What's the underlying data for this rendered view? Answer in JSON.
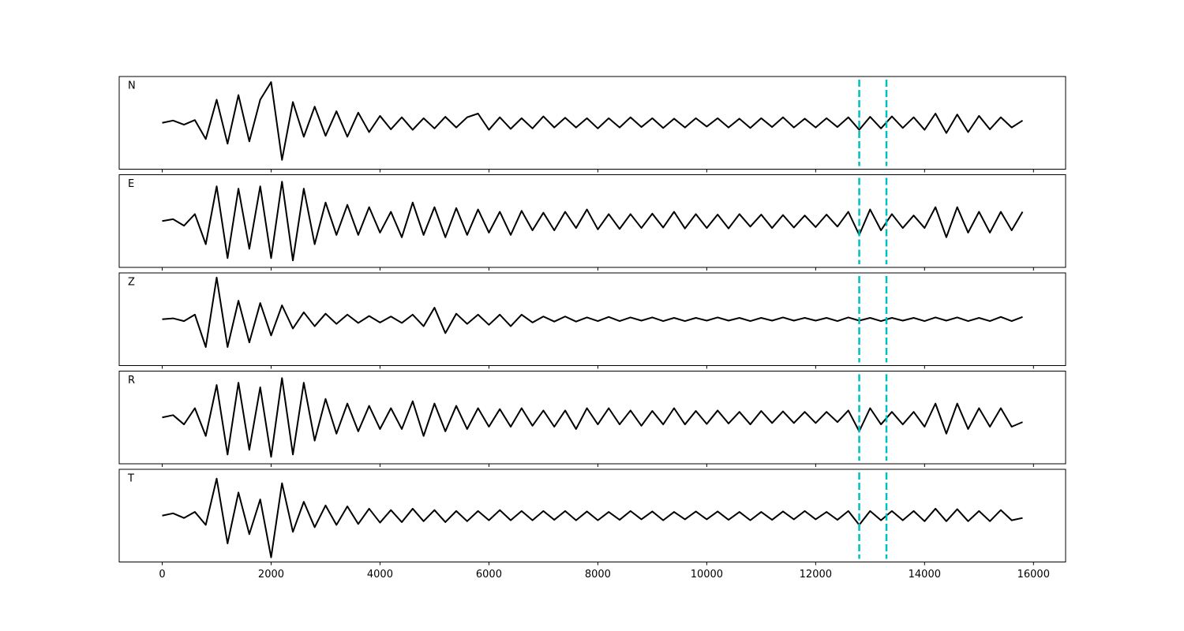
{
  "chart_data": {
    "type": "line",
    "layout": "stacked",
    "x": [
      0,
      200,
      400,
      600,
      800,
      1000,
      1200,
      1400,
      1600,
      1800,
      2000,
      2200,
      2400,
      2600,
      2800,
      3000,
      3200,
      3400,
      3600,
      3800,
      4000,
      4200,
      4400,
      4600,
      4800,
      5000,
      5200,
      5400,
      5600,
      5800,
      6000,
      6200,
      6400,
      6600,
      6800,
      7000,
      7200,
      7400,
      7600,
      7800,
      8000,
      8200,
      8400,
      8600,
      8800,
      9000,
      9200,
      9400,
      9600,
      9800,
      10000,
      10200,
      10400,
      10600,
      10800,
      11000,
      11200,
      11400,
      11600,
      11800,
      12000,
      12200,
      12400,
      12600,
      12800,
      13000,
      13200,
      13400,
      13600,
      13800,
      14000,
      14200,
      14400,
      14600,
      14800,
      15000,
      15200,
      15400,
      15600,
      15800
    ],
    "series": [
      {
        "name": "N",
        "color": "#000000",
        "values": [
          0,
          0.05,
          -0.04,
          0.06,
          -0.35,
          0.5,
          -0.45,
          0.6,
          -0.4,
          0.5,
          0.88,
          -0.8,
          0.45,
          -0.3,
          0.35,
          -0.28,
          0.25,
          -0.3,
          0.22,
          -0.2,
          0.15,
          -0.14,
          0.12,
          -0.15,
          0.1,
          -0.12,
          0.13,
          -0.1,
          0.12,
          0.2,
          -0.15,
          0.12,
          -0.13,
          0.1,
          -0.12,
          0.14,
          -0.1,
          0.11,
          -0.1,
          0.1,
          -0.12,
          0.1,
          -0.1,
          0.12,
          -0.09,
          0.1,
          -0.11,
          0.09,
          -0.1,
          0.1,
          -0.08,
          0.1,
          -0.1,
          0.09,
          -0.11,
          0.1,
          -0.09,
          0.12,
          -0.1,
          0.09,
          -0.1,
          0.1,
          -0.09,
          0.12,
          -0.15,
          0.13,
          -0.12,
          0.14,
          -0.11,
          0.12,
          -0.15,
          0.2,
          -0.22,
          0.18,
          -0.2,
          0.15,
          -0.14,
          0.12,
          -0.1,
          0.05
        ]
      },
      {
        "name": "E",
        "color": "#000000",
        "values": [
          0,
          0.04,
          -0.1,
          0.15,
          -0.5,
          0.75,
          -0.8,
          0.7,
          -0.6,
          0.75,
          -0.8,
          0.85,
          -0.85,
          0.7,
          -0.5,
          0.4,
          -0.3,
          0.35,
          -0.3,
          0.3,
          -0.25,
          0.2,
          -0.35,
          0.4,
          -0.3,
          0.3,
          -0.35,
          0.28,
          -0.3,
          0.25,
          -0.25,
          0.2,
          -0.3,
          0.22,
          -0.2,
          0.18,
          -0.2,
          0.2,
          -0.15,
          0.25,
          -0.18,
          0.15,
          -0.17,
          0.15,
          -0.15,
          0.16,
          -0.14,
          0.2,
          -0.16,
          0.15,
          -0.15,
          0.14,
          -0.16,
          0.15,
          -0.12,
          0.14,
          -0.15,
          0.13,
          -0.14,
          0.12,
          -0.13,
          0.14,
          -0.12,
          0.2,
          -0.3,
          0.25,
          -0.2,
          0.15,
          -0.15,
          0.12,
          -0.15,
          0.3,
          -0.35,
          0.3,
          -0.25,
          0.2,
          -0.25,
          0.2,
          -0.2,
          0.2
        ]
      },
      {
        "name": "Z",
        "color": "#000000",
        "values": [
          0,
          0.02,
          -0.04,
          0.1,
          -0.6,
          0.9,
          -0.6,
          0.4,
          -0.5,
          0.35,
          -0.35,
          0.3,
          -0.2,
          0.15,
          -0.15,
          0.12,
          -0.1,
          0.1,
          -0.08,
          0.07,
          -0.07,
          0.06,
          -0.08,
          0.1,
          -0.15,
          0.25,
          -0.3,
          0.12,
          -0.1,
          0.1,
          -0.12,
          0.1,
          -0.15,
          0.1,
          -0.07,
          0.06,
          -0.05,
          0.06,
          -0.05,
          0.04,
          -0.04,
          0.05,
          -0.04,
          0.04,
          -0.03,
          0.04,
          -0.04,
          0.03,
          -0.04,
          0.03,
          -0.03,
          0.04,
          -0.03,
          0.03,
          -0.04,
          0.03,
          -0.03,
          0.04,
          -0.03,
          0.03,
          -0.03,
          0.03,
          -0.04,
          0.04,
          -0.03,
          0.03,
          -0.04,
          0.03,
          -0.03,
          0.03,
          -0.04,
          0.04,
          -0.03,
          0.04,
          -0.04,
          0.03,
          -0.04,
          0.05,
          -0.04,
          0.05
        ]
      },
      {
        "name": "R",
        "color": "#000000",
        "values": [
          0,
          0.05,
          -0.15,
          0.2,
          -0.4,
          0.7,
          -0.8,
          0.75,
          -0.7,
          0.65,
          -0.85,
          0.85,
          -0.8,
          0.75,
          -0.5,
          0.4,
          -0.35,
          0.3,
          -0.3,
          0.25,
          -0.25,
          0.2,
          -0.25,
          0.35,
          -0.4,
          0.3,
          -0.3,
          0.25,
          -0.25,
          0.2,
          -0.2,
          0.18,
          -0.2,
          0.2,
          -0.18,
          0.15,
          -0.2,
          0.15,
          -0.25,
          0.2,
          -0.15,
          0.2,
          -0.15,
          0.15,
          -0.18,
          0.14,
          -0.15,
          0.2,
          -0.15,
          0.14,
          -0.14,
          0.15,
          -0.13,
          0.12,
          -0.15,
          0.14,
          -0.12,
          0.13,
          -0.12,
          0.12,
          -0.12,
          0.12,
          -0.1,
          0.15,
          -0.3,
          0.2,
          -0.15,
          0.12,
          -0.15,
          0.12,
          -0.2,
          0.3,
          -0.35,
          0.3,
          -0.25,
          0.2,
          -0.2,
          0.2,
          -0.2,
          -0.1
        ]
      },
      {
        "name": "T",
        "color": "#000000",
        "values": [
          0,
          0.05,
          -0.05,
          0.08,
          -0.2,
          0.8,
          -0.6,
          0.5,
          -0.4,
          0.35,
          -0.9,
          0.7,
          -0.35,
          0.3,
          -0.25,
          0.22,
          -0.2,
          0.2,
          -0.18,
          0.15,
          -0.15,
          0.12,
          -0.14,
          0.15,
          -0.12,
          0.12,
          -0.14,
          0.1,
          -0.12,
          0.1,
          -0.1,
          0.12,
          -0.1,
          0.1,
          -0.1,
          0.1,
          -0.09,
          0.1,
          -0.1,
          0.09,
          -0.1,
          0.08,
          -0.09,
          0.1,
          -0.08,
          0.09,
          -0.1,
          0.08,
          -0.08,
          0.09,
          -0.08,
          0.09,
          -0.09,
          0.08,
          -0.1,
          0.08,
          -0.09,
          0.09,
          -0.08,
          0.1,
          -0.08,
          0.08,
          -0.09,
          0.1,
          -0.2,
          0.1,
          -0.1,
          0.1,
          -0.1,
          0.1,
          -0.12,
          0.15,
          -0.12,
          0.14,
          -0.12,
          0.1,
          -0.12,
          0.12,
          -0.1,
          -0.05
        ]
      }
    ],
    "xlim": [
      -790,
      16590
    ],
    "ylim": [
      -1,
      1
    ],
    "xticks": [
      0,
      2000,
      4000,
      6000,
      8000,
      10000,
      12000,
      14000,
      16000
    ],
    "vlines": [
      12800,
      13300
    ],
    "vline_color": "#00bfbf"
  }
}
